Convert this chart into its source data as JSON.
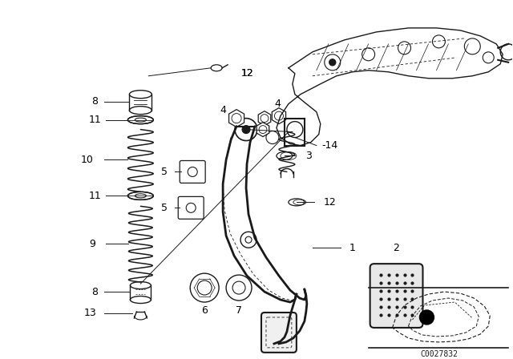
{
  "bg_color": "#ffffff",
  "diagram_color": "#1a1a1a",
  "fig_width": 6.4,
  "fig_height": 4.48,
  "dpi": 100,
  "watermark": "C0027832"
}
